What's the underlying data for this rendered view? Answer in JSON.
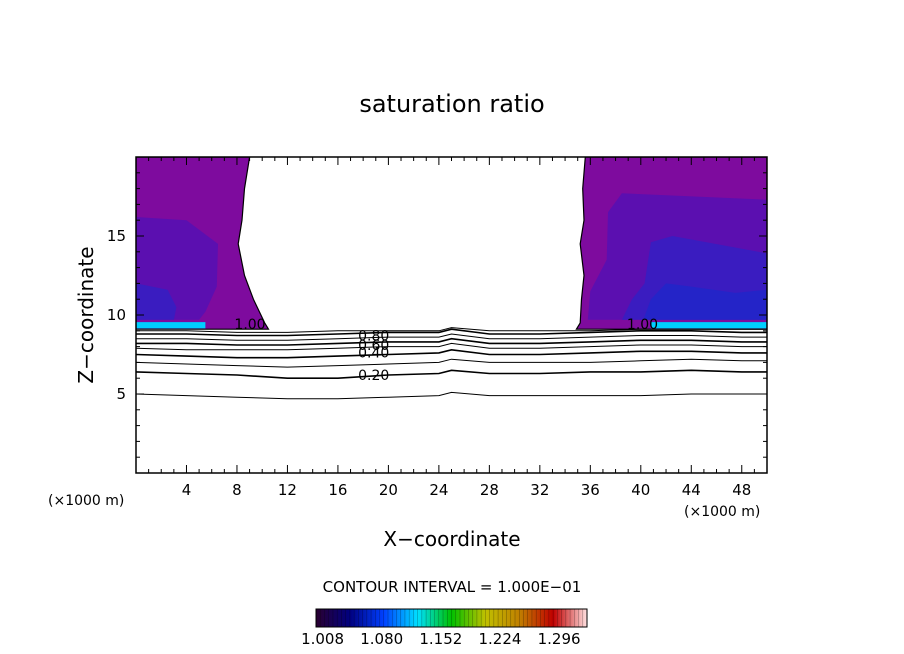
{
  "chart_data": {
    "type": "contour",
    "title": "saturation ratio",
    "xlabel": "X−coordinate",
    "ylabel": "Z−coordinate",
    "x_unit": "(×1000 m)",
    "xlim": [
      0,
      50
    ],
    "ylim": [
      0,
      20
    ],
    "x_ticks": [
      4,
      8,
      12,
      16,
      20,
      24,
      28,
      32,
      36,
      40,
      44,
      48
    ],
    "y_ticks": [
      5,
      10,
      15
    ],
    "contour_interval_label": "CONTOUR INTERVAL = 1.000E−01",
    "contour_levels": [
      0.2,
      0.4,
      0.5,
      0.6,
      0.7,
      0.8,
      0.9,
      1.0
    ],
    "contour_labels": [
      {
        "text": "1.00",
        "x": 7.8,
        "z": 9.1
      },
      {
        "text": "1.00",
        "x": 38.9,
        "z": 9.1
      },
      {
        "text": "0.80",
        "x": 17.6,
        "z": 8.4
      },
      {
        "text": "0.60",
        "x": 17.6,
        "z": 7.8
      },
      {
        "text": "0.40",
        "x": 17.6,
        "z": 7.3
      },
      {
        "text": "0.20",
        "x": 17.6,
        "z": 5.9
      }
    ],
    "contour_lines": [
      {
        "level": 0.1,
        "x": [
          0,
          4,
          8,
          12,
          16,
          20,
          24,
          25,
          28,
          32,
          36,
          40,
          44,
          48,
          50
        ],
        "z": [
          5.0,
          4.9,
          4.8,
          4.7,
          4.7,
          4.8,
          4.9,
          5.1,
          4.9,
          4.9,
          4.9,
          4.9,
          5.0,
          5.0,
          5.0
        ]
      },
      {
        "level": 0.2,
        "x": [
          0,
          4,
          8,
          12,
          16,
          20,
          24,
          25,
          28,
          32,
          36,
          40,
          44,
          48,
          50
        ],
        "z": [
          6.4,
          6.3,
          6.2,
          6.0,
          6.0,
          6.2,
          6.3,
          6.5,
          6.3,
          6.3,
          6.4,
          6.4,
          6.5,
          6.4,
          6.4
        ]
      },
      {
        "level": 0.3,
        "x": [
          0,
          4,
          8,
          12,
          16,
          20,
          24,
          25,
          28,
          32,
          36,
          40,
          44,
          48,
          50
        ],
        "z": [
          7.0,
          6.9,
          6.8,
          6.7,
          6.8,
          6.9,
          7.0,
          7.2,
          7.0,
          7.0,
          7.0,
          7.1,
          7.2,
          7.1,
          7.1
        ]
      },
      {
        "level": 0.4,
        "x": [
          0,
          4,
          8,
          12,
          16,
          20,
          24,
          25,
          28,
          32,
          36,
          40,
          44,
          48,
          50
        ],
        "z": [
          7.5,
          7.4,
          7.3,
          7.3,
          7.4,
          7.5,
          7.6,
          7.8,
          7.5,
          7.5,
          7.6,
          7.7,
          7.7,
          7.6,
          7.6
        ]
      },
      {
        "level": 0.5,
        "x": [
          0,
          4,
          8,
          12,
          16,
          20,
          24,
          25,
          28,
          32,
          36,
          40,
          44,
          48,
          50
        ],
        "z": [
          7.9,
          7.8,
          7.8,
          7.8,
          7.9,
          8.0,
          8.0,
          8.2,
          7.9,
          7.9,
          8.0,
          8.1,
          8.1,
          8.0,
          8.0
        ]
      },
      {
        "level": 0.6,
        "x": [
          0,
          4,
          8,
          12,
          16,
          20,
          24,
          25,
          28,
          32,
          36,
          40,
          44,
          48,
          50
        ],
        "z": [
          8.2,
          8.2,
          8.1,
          8.1,
          8.2,
          8.3,
          8.3,
          8.5,
          8.2,
          8.2,
          8.3,
          8.4,
          8.4,
          8.3,
          8.3
        ]
      },
      {
        "level": 0.7,
        "x": [
          0,
          4,
          8,
          12,
          16,
          20,
          24,
          25,
          28,
          32,
          36,
          40,
          44,
          48,
          50
        ],
        "z": [
          8.5,
          8.5,
          8.4,
          8.4,
          8.5,
          8.6,
          8.6,
          8.8,
          8.5,
          8.5,
          8.6,
          8.7,
          8.7,
          8.6,
          8.6
        ]
      },
      {
        "level": 0.8,
        "x": [
          0,
          4,
          8,
          12,
          16,
          20,
          24,
          25,
          28,
          32,
          36,
          40,
          44,
          48,
          50
        ],
        "z": [
          8.8,
          8.8,
          8.7,
          8.7,
          8.8,
          8.9,
          8.9,
          9.1,
          8.8,
          8.8,
          8.9,
          9.0,
          9.0,
          8.9,
          8.9
        ]
      },
      {
        "level": 0.9,
        "x": [
          0,
          4,
          8,
          12,
          16,
          20,
          24,
          25,
          28,
          32,
          36,
          40,
          44,
          48,
          50
        ],
        "z": [
          9.0,
          9.0,
          8.9,
          8.9,
          9.0,
          9.0,
          9.0,
          9.2,
          9.0,
          9.0,
          9.0,
          9.1,
          9.1,
          9.1,
          9.1
        ]
      }
    ],
    "supersaturated_regions": [
      {
        "name": "left",
        "edge_x": [
          9.0,
          8.6,
          8.4,
          8.1,
          8.6,
          9.3,
          10.2,
          10.5
        ],
        "edge_z": [
          20.0,
          18.0,
          16.0,
          14.5,
          12.5,
          11.0,
          9.5,
          9.1
        ]
      },
      {
        "name": "right",
        "edge_x": [
          35.6,
          35.4,
          35.5,
          35.2,
          35.5,
          35.3,
          35.2,
          34.9
        ],
        "edge_z": [
          20.0,
          18.0,
          16.0,
          14.5,
          12.5,
          11.0,
          9.5,
          9.1
        ]
      }
    ],
    "colorbar": {
      "min": 1.0,
      "max": 1.33,
      "tick_labels": [
        "1.008",
        "1.080",
        "1.152",
        "1.224",
        "1.296"
      ],
      "colors": [
        "#2a0030",
        "#000080",
        "#0040ff",
        "#00e0ff",
        "#00c000",
        "#c0c000",
        "#c08000",
        "#c00000",
        "#ffe0e0"
      ]
    },
    "fill_colors": {
      "outer": "#7e0b9e",
      "mid": "#5b0fb0",
      "inner": "#3a1cc0",
      "core": "#2424c8",
      "band": "#00cfff"
    },
    "grid": false
  }
}
